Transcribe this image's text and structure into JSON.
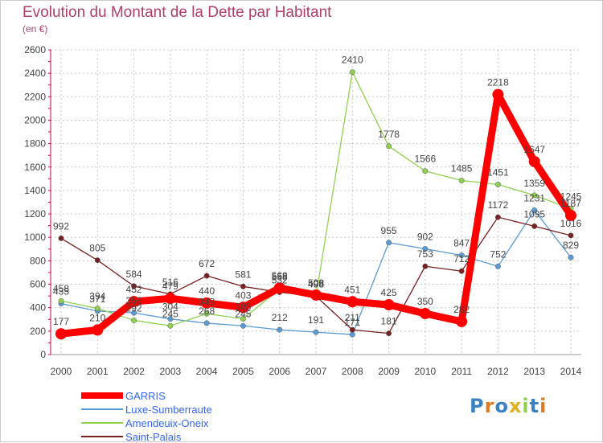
{
  "title": "Evolution du Montant de la Dette par Habitant",
  "unit_label": "(en €)",
  "logo_text": "Proxiti",
  "chart_data": {
    "type": "line",
    "x": [
      "2000",
      "2001",
      "2002",
      "2003",
      "2004",
      "2005",
      "2006",
      "2007",
      "2008",
      "2009",
      "2010",
      "2011",
      "2012",
      "2013",
      "2014"
    ],
    "ylim": [
      0,
      2600
    ],
    "yticks": [
      0,
      200,
      400,
      600,
      800,
      1000,
      1200,
      1400,
      1600,
      1800,
      2000,
      2200,
      2400,
      2600
    ],
    "grid": true,
    "legend_position": "bottom-left",
    "series": [
      {
        "name": "GARRIS",
        "color": "#ff0000",
        "values": [
          177,
          210,
          452,
          479,
          440,
          403,
          568,
          508,
          451,
          425,
          350,
          282,
          2218,
          1647,
          1187
        ]
      },
      {
        "name": "Luxe-Sumberraute",
        "color": "#5b9bd5",
        "values": [
          435,
          371,
          356,
          304,
          268,
          245,
          212,
          191,
          171,
          955,
          902,
          847,
          752,
          1231,
          829
        ]
      },
      {
        "name": "Amendeuix-Oneix",
        "color": "#8fd14f",
        "values": [
          458,
          394,
          292,
          245,
          348,
          305,
          558,
          498,
          2410,
          1778,
          1566,
          1485,
          1451,
          1359,
          1245
        ]
      },
      {
        "name": "Saint-Palais",
        "color": "#7a2020",
        "values": [
          992,
          805,
          584,
          516,
          672,
          581,
          532,
          498,
          211,
          181,
          753,
          712,
          1172,
          1095,
          1016
        ]
      }
    ]
  }
}
